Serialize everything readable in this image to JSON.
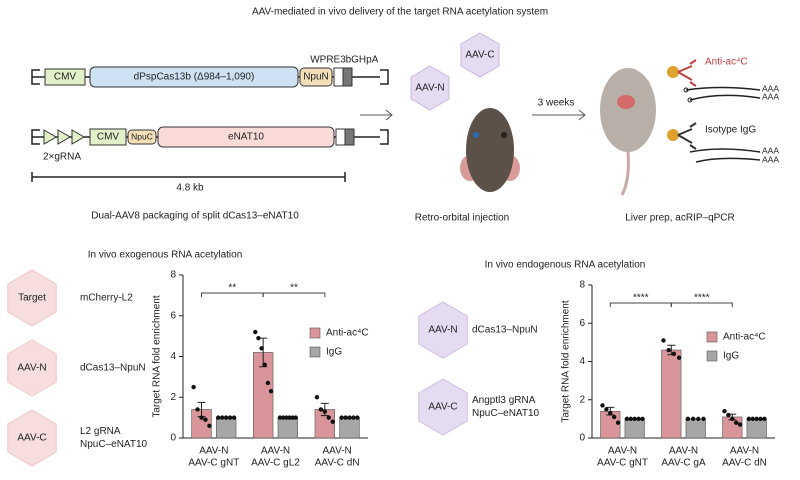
{
  "header": {
    "title": "AAV-mediated in vivo delivery of the target RNA acetylation system"
  },
  "construct": {
    "n_parts": [
      "CMV",
      "dPspCas13b (Δ984–1,090)",
      "NpuN",
      "WPRE3",
      "bGHpA"
    ],
    "c_parts": [
      "2×gRNA",
      "CMV",
      "NpuC",
      "eNAT10"
    ],
    "length": "4.8 kb",
    "caption": "Dual-AAV8 packaging of split dCas13–eNAT10"
  },
  "injection": {
    "capsids": [
      "AAV-C",
      "AAV-N"
    ],
    "interval": "3 weeks",
    "caption": "Retro-orbital injection"
  },
  "acrip": {
    "antibodies": [
      "Anti-ac⁴C",
      "Isotype IgG"
    ],
    "poly_a": [
      "AAA",
      "AAA",
      "AAA",
      "AAA"
    ],
    "caption": "Liver prep, acRIP–qPCR"
  },
  "exogenous_key": [
    {
      "capsid": "Target",
      "label": [
        "mCherry-L2"
      ]
    },
    {
      "capsid": "AAV-N",
      "label": [
        "dCas13–NpuN"
      ]
    },
    {
      "capsid": "AAV-C",
      "label": [
        "L2 gRNA",
        "NpuC–eNAT10"
      ]
    }
  ],
  "endogenous_key": [
    {
      "capsid": "AAV-N",
      "label": [
        "dCas13–NpuN"
      ]
    },
    {
      "capsid": "AAV-C",
      "label": [
        "Angptl3 gRNA",
        "NpuC–eNAT10"
      ]
    }
  ],
  "chart_data": [
    {
      "type": "bar",
      "title": "In vivo exogenous RNA acetylation",
      "y_label": "Target RNA fold enrichment",
      "categories": [
        [
          "AAV-N",
          "AAV-C gNT"
        ],
        [
          "AAV-N",
          "AAV-C gL2"
        ],
        [
          "AAV-N",
          "AAV-C dN"
        ]
      ],
      "series": [
        {
          "name": "Anti-ac⁴C",
          "color": "#d9959a",
          "values": [
            1.4,
            4.2,
            1.4
          ],
          "errors": [
            0.35,
            0.7,
            0.3
          ],
          "points": [
            [
              2.5,
              1.4,
              1.0,
              0.9,
              0.6
            ],
            [
              5.2,
              4.9,
              4.4,
              3.6,
              2.7,
              2.3
            ],
            [
              2.0,
              1.4,
              1.3,
              1.0,
              0.8
            ]
          ]
        },
        {
          "name": "IgG",
          "color": "#a6a6a6",
          "values": [
            1,
            1,
            1
          ],
          "errors": [
            0,
            0,
            0
          ],
          "points": [
            [
              1,
              1,
              1,
              1,
              1
            ],
            [
              1,
              1,
              1,
              1,
              1,
              1
            ],
            [
              1,
              1,
              1,
              1,
              1
            ]
          ]
        }
      ],
      "significance": [
        "**",
        "**"
      ],
      "ylim": [
        0,
        8
      ],
      "yticks": [
        0,
        2,
        4,
        6,
        8
      ]
    },
    {
      "type": "bar",
      "title": "In vivo endogenous RNA acetylation",
      "y_label": "Target RNA fold enrichment",
      "categories": [
        [
          "AAV-N",
          "AAV-C gNT"
        ],
        [
          "AAV-N",
          "AAV-C gA"
        ],
        [
          "AAV-N",
          "AAV-C dN"
        ]
      ],
      "series": [
        {
          "name": "Anti-ac⁴C",
          "color": "#d9959a",
          "values": [
            1.4,
            4.6,
            1.1
          ],
          "errors": [
            0.2,
            0.25,
            0.15
          ],
          "points": [
            [
              1.7,
              1.5,
              1.3,
              1.1,
              0.8
            ],
            [
              5.1,
              4.6,
              4.4,
              4.2
            ],
            [
              1.4,
              1.2,
              1.0,
              0.8,
              0.7
            ]
          ]
        },
        {
          "name": "IgG",
          "color": "#a6a6a6",
          "values": [
            1,
            1,
            1
          ],
          "errors": [
            0,
            0,
            0
          ],
          "points": [
            [
              1,
              1,
              1,
              1,
              1
            ],
            [
              1,
              1,
              1,
              1
            ],
            [
              1,
              1,
              1,
              1,
              1
            ]
          ]
        }
      ],
      "significance": [
        "****",
        "****"
      ],
      "ylim": [
        0,
        8
      ],
      "yticks": [
        0,
        2,
        4,
        6,
        8
      ]
    }
  ]
}
